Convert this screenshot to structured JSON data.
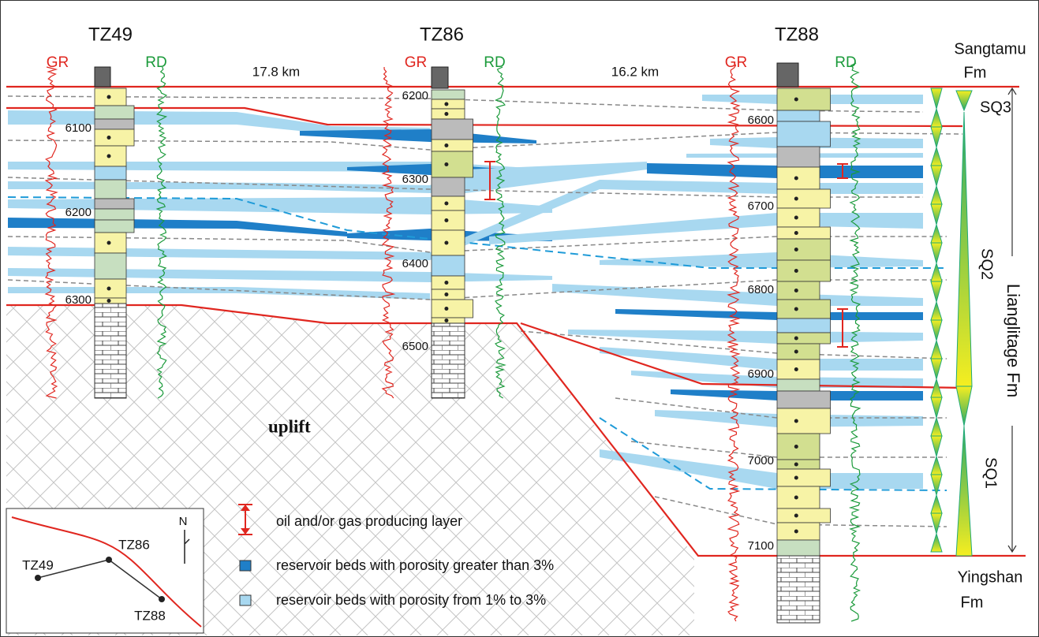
{
  "wells": [
    {
      "name": "TZ49",
      "logs": [
        "GR",
        "RD"
      ],
      "depths": [
        6100,
        6200,
        6300
      ]
    },
    {
      "name": "TZ86",
      "logs": [
        "GR",
        "RD"
      ],
      "depths": [
        6200,
        6300,
        6400,
        6500
      ]
    },
    {
      "name": "TZ88",
      "logs": [
        "GR",
        "RD"
      ],
      "depths": [
        6600,
        6700,
        6800,
        6900,
        7000,
        7100
      ]
    }
  ],
  "distances": [
    "17.8 km",
    "16.2 km"
  ],
  "formations": {
    "top": [
      "Sangtamu",
      "Fm"
    ],
    "middle": "Lianglitage Fm",
    "bottom": [
      "Yingshan",
      "Fm"
    ]
  },
  "sequences": [
    "SQ3",
    "SQ2",
    "SQ1"
  ],
  "uplift": "uplift",
  "legend": [
    "oil and/or gas producing layer",
    "reservoir beds with porosity greater than 3%",
    "reservoir beds with porosity from 1% to 3%"
  ],
  "inset": {
    "wells": [
      "TZ49",
      "TZ86",
      "TZ88"
    ],
    "north": "N"
  }
}
